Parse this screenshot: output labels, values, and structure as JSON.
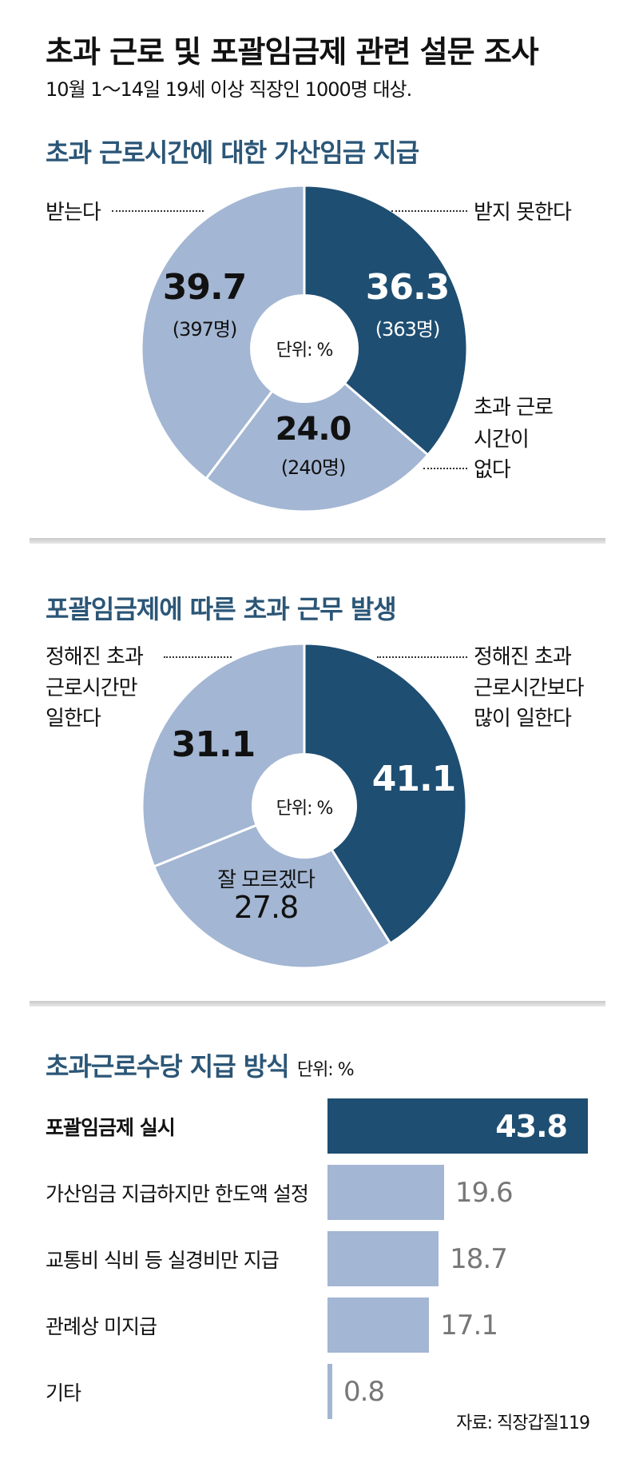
{
  "header": {
    "title": "초과 근로 및 포괄임금제 관련 설문 조사",
    "subtitle": "10월 1～14일 19세 이상 직장인 1000명 대상."
  },
  "colors": {
    "dark": "#1e4e72",
    "light": "#a3b6d3",
    "title": "#2b5677",
    "value_gray": "#777777"
  },
  "chart_data": [
    {
      "type": "pie",
      "title": "초과 근로시간에 대한 가산임금 지급",
      "unit": "단위: %",
      "slices": [
        {
          "label": "받지 못한다",
          "value": 36.3,
          "value_label": "36.3",
          "count": "(363명)",
          "color": "#1e4e72"
        },
        {
          "label": "초과 근로 시간이 없다",
          "label_lines": [
            "초과 근로",
            "시간이",
            "없다"
          ],
          "value": 24.0,
          "value_label": "24.0",
          "count": "(240명)",
          "color": "#a3b6d3"
        },
        {
          "label": "받는다",
          "value": 39.7,
          "value_label": "39.7",
          "count": "(397명)",
          "color": "#a3b6d3"
        }
      ]
    },
    {
      "type": "pie",
      "title": "포괄임금제에 따른 초과 근무 발생",
      "unit": "단위: %",
      "slices": [
        {
          "label": "정해진 초과 근로시간보다 많이 일한다",
          "label_lines": [
            "정해진 초과",
            "근로시간보다",
            "많이 일한다"
          ],
          "value": 41.1,
          "value_label": "41.1",
          "color": "#1e4e72"
        },
        {
          "label": "잘 모르겠다",
          "value": 27.8,
          "value_label": "27.8",
          "color": "#a3b6d3"
        },
        {
          "label": "정해진 초과 근로시간만 일한다",
          "label_lines": [
            "정해진 초과",
            "근로시간만",
            "일한다"
          ],
          "value": 31.1,
          "value_label": "31.1",
          "color": "#a3b6d3"
        }
      ]
    },
    {
      "type": "bar",
      "orientation": "horizontal",
      "title": "초과근로수당 지급 방식",
      "unit": "단위: %",
      "categories": [
        "포괄임금제 실시",
        "가산임금 지급하지만 한도액 설정",
        "교통비 식비 등 실경비만 지급",
        "관례상 미지급",
        "기타"
      ],
      "values": [
        43.8,
        19.6,
        18.7,
        17.1,
        0.8
      ],
      "value_labels": [
        "43.8",
        "19.6",
        "18.7",
        "17.1",
        "0.8"
      ],
      "highlight_index": 0
    }
  ],
  "source": "자료: 직장갑질119"
}
